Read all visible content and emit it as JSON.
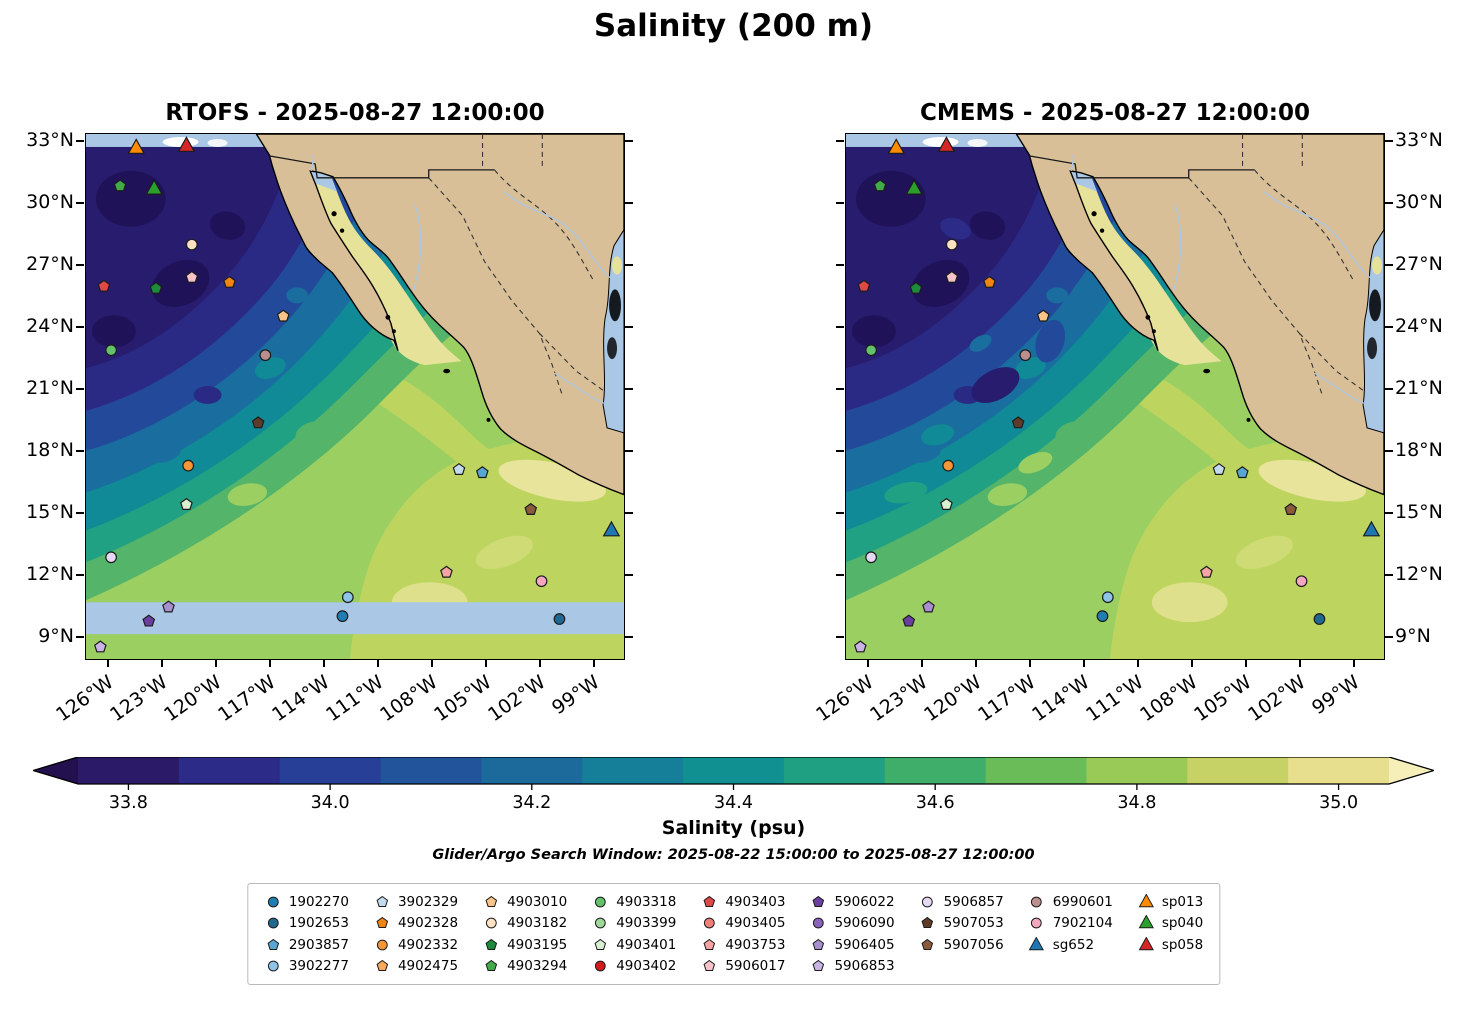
{
  "chart_data": {
    "type": "heatmap",
    "title": "Salinity (200 m)",
    "panels": [
      {
        "name": "rtofs",
        "title": "RTOFS - 2025-08-27 12:00:00",
        "label_side": "left"
      },
      {
        "name": "cmems",
        "title": "CMEMS - 2025-08-27 12:00:00",
        "label_side": "right"
      }
    ],
    "geo_axes": {
      "lat_top": 33.4,
      "lat_bottom": 7.9,
      "lon_left_w": 127.3,
      "lon_right_w": 97.3,
      "lat_ticks": [
        {
          "label": "33°N",
          "lat": 33
        },
        {
          "label": "30°N",
          "lat": 30
        },
        {
          "label": "27°N",
          "lat": 27
        },
        {
          "label": "24°N",
          "lat": 24
        },
        {
          "label": "21°N",
          "lat": 21
        },
        {
          "label": "18°N",
          "lat": 18
        },
        {
          "label": "15°N",
          "lat": 15
        },
        {
          "label": "12°N",
          "lat": 12
        },
        {
          "label": "9°N",
          "lat": 9
        }
      ],
      "lon_ticks": [
        {
          "label": "126°W",
          "lon_w": 126
        },
        {
          "label": "123°W",
          "lon_w": 123
        },
        {
          "label": "120°W",
          "lon_w": 120
        },
        {
          "label": "117°W",
          "lon_w": 117
        },
        {
          "label": "114°W",
          "lon_w": 114
        },
        {
          "label": "111°W",
          "lon_w": 111
        },
        {
          "label": "108°W",
          "lon_w": 108
        },
        {
          "label": "105°W",
          "lon_w": 105
        },
        {
          "label": "102°W",
          "lon_w": 102
        },
        {
          "label": "99°W",
          "lon_w": 99
        }
      ]
    },
    "colorbar": {
      "label": "Salinity (psu)",
      "vmin": 33.75,
      "vmax": 35.05,
      "ticks": [
        33.8,
        34.0,
        34.2,
        34.4,
        34.6,
        34.8,
        35.0
      ],
      "tick_labels": [
        "33.8",
        "34.0",
        "34.2",
        "34.4",
        "34.6",
        "34.8",
        "35.0"
      ],
      "colors": [
        "#23104f",
        "#2a1a68",
        "#2c2b87",
        "#273f97",
        "#22549b",
        "#1c699c",
        "#157e99",
        "#119092",
        "#1fa083",
        "#3fae6b",
        "#6abc58",
        "#99c957",
        "#c6d266",
        "#e7df8d",
        "#f6efba"
      ]
    },
    "note": "Glider/Argo Search Window: 2025-08-22 15:00:00 to 2025-08-27 12:00:00",
    "map_colors": {
      "land": "#d9bf97",
      "nodata": "#aac7e6",
      "coastline": "#000000"
    },
    "legend_layout": [
      4,
      4,
      4,
      4,
      4,
      4,
      3,
      3,
      3
    ],
    "legend_entries": [
      {
        "label": "1902270",
        "shape": "circle",
        "color": "#1f7fb4"
      },
      {
        "label": "1902653",
        "shape": "circle",
        "color": "#21688f"
      },
      {
        "label": "2903857",
        "shape": "pentagon",
        "color": "#5aa6d3"
      },
      {
        "label": "3902277",
        "shape": "circle",
        "color": "#8ec4e8"
      },
      {
        "label": "3902329",
        "shape": "pentagon",
        "color": "#c3dced"
      },
      {
        "label": "4902328",
        "shape": "pentagon",
        "color": "#f08514"
      },
      {
        "label": "4902332",
        "shape": "circle",
        "color": "#f49738"
      },
      {
        "label": "4902475",
        "shape": "pentagon",
        "color": "#f8ab5e"
      },
      {
        "label": "4903010",
        "shape": "pentagon",
        "color": "#fbc488"
      },
      {
        "label": "4903182",
        "shape": "circle",
        "color": "#fde3c3"
      },
      {
        "label": "4903195",
        "shape": "pentagon",
        "color": "#1e8b3c"
      },
      {
        "label": "4903294",
        "shape": "pentagon",
        "color": "#41ab4a"
      },
      {
        "label": "4903318",
        "shape": "circle",
        "color": "#64c06a"
      },
      {
        "label": "4903399",
        "shape": "circle",
        "color": "#9ed898"
      },
      {
        "label": "4903401",
        "shape": "pentagon",
        "color": "#d9f0d0"
      },
      {
        "label": "4903402",
        "shape": "circle",
        "color": "#cf1c1c"
      },
      {
        "label": "4903403",
        "shape": "pentagon",
        "color": "#e04848"
      },
      {
        "label": "4903405",
        "shape": "circle",
        "color": "#ef7f77"
      },
      {
        "label": "4903753",
        "shape": "pentagon",
        "color": "#f5a3a3"
      },
      {
        "label": "5906017",
        "shape": "pentagon",
        "color": "#f9c4c9"
      },
      {
        "label": "5906022",
        "shape": "pentagon",
        "color": "#6a3fa0"
      },
      {
        "label": "5906090",
        "shape": "circle",
        "color": "#8a63bb"
      },
      {
        "label": "5906405",
        "shape": "pentagon",
        "color": "#a98fd0"
      },
      {
        "label": "5906853",
        "shape": "pentagon",
        "color": "#c9b4e4"
      },
      {
        "label": "5906857",
        "shape": "circle",
        "color": "#e4d9f2"
      },
      {
        "label": "5907053",
        "shape": "pentagon",
        "color": "#5e3a28"
      },
      {
        "label": "5907056",
        "shape": "pentagon",
        "color": "#8a5a3c"
      },
      {
        "label": "6990601",
        "shape": "circle",
        "color": "#bc8f8f"
      },
      {
        "label": "7902104",
        "shape": "circle",
        "color": "#f3a8c0"
      },
      {
        "label": "sg652",
        "shape": "triangle",
        "color": "#1f77b4"
      },
      {
        "label": "sp013",
        "shape": "triangle",
        "color": "#ff8c00"
      },
      {
        "label": "sp040",
        "shape": "triangle",
        "color": "#2ca02c"
      },
      {
        "label": "sp058",
        "shape": "triangle",
        "color": "#d62728"
      }
    ],
    "platform_markers": [
      {
        "id": "sp013",
        "lon_w": 124.5,
        "lat": 32.72
      },
      {
        "id": "sp058",
        "lon_w": 121.7,
        "lat": 32.82
      },
      {
        "id": "4903294",
        "lon_w": 125.4,
        "lat": 30.88
      },
      {
        "id": "sp040",
        "lon_w": 123.5,
        "lat": 30.74
      },
      {
        "id": "4903182",
        "lon_w": 121.4,
        "lat": 28.03
      },
      {
        "id": "5906017",
        "lon_w": 121.4,
        "lat": 26.43
      },
      {
        "id": "4903403",
        "lon_w": 126.3,
        "lat": 26.0
      },
      {
        "id": "4903195",
        "lon_w": 123.4,
        "lat": 25.9
      },
      {
        "id": "4902328",
        "lon_w": 119.3,
        "lat": 26.19
      },
      {
        "id": "4903010",
        "lon_w": 116.3,
        "lat": 24.55
      },
      {
        "id": "4903318",
        "lon_w": 125.9,
        "lat": 22.9
      },
      {
        "id": "6990601",
        "lon_w": 117.3,
        "lat": 22.66
      },
      {
        "id": "5907053",
        "lon_w": 117.7,
        "lat": 19.37
      },
      {
        "id": "4902332",
        "lon_w": 121.6,
        "lat": 17.29
      },
      {
        "id": "3902329",
        "lon_w": 106.5,
        "lat": 17.1
      },
      {
        "id": "2903857",
        "lon_w": 105.2,
        "lat": 16.95
      },
      {
        "id": "4903401",
        "lon_w": 121.7,
        "lat": 15.4
      },
      {
        "id": "5907056",
        "lon_w": 102.5,
        "lat": 15.16
      },
      {
        "id": "sg652",
        "lon_w": 98.0,
        "lat": 14.14
      },
      {
        "id": "5906857",
        "lon_w": 125.9,
        "lat": 12.84
      },
      {
        "id": "4903753",
        "lon_w": 107.2,
        "lat": 12.11
      },
      {
        "id": "7902104",
        "lon_w": 101.9,
        "lat": 11.68
      },
      {
        "id": "3902277",
        "lon_w": 112.7,
        "lat": 10.9
      },
      {
        "id": "5906405",
        "lon_w": 122.7,
        "lat": 10.42
      },
      {
        "id": "1902270",
        "lon_w": 113.0,
        "lat": 9.98
      },
      {
        "id": "5906022",
        "lon_w": 123.8,
        "lat": 9.74
      },
      {
        "id": "1902653",
        "lon_w": 100.9,
        "lat": 9.84
      },
      {
        "id": "5906853",
        "lon_w": 126.5,
        "lat": 8.48
      }
    ]
  }
}
